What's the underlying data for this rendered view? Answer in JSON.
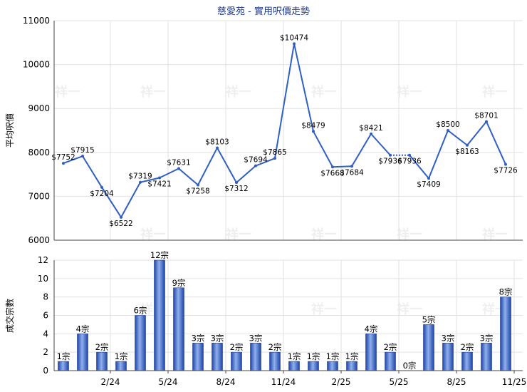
{
  "chart_data": [
    {
      "type": "line",
      "title": "慈愛苑 - 實用呎價走勢",
      "ylabel": "平均呎價",
      "ylim": [
        6000,
        11000
      ],
      "yticks": [
        6000,
        7000,
        8000,
        9000,
        10000,
        11000
      ],
      "grid": true,
      "series": [
        {
          "values": [
            7752,
            7915,
            7204,
            6522,
            7319,
            7421,
            7631,
            7258,
            8103,
            7312,
            7694,
            7865,
            10474,
            8479,
            7668,
            7684,
            8421,
            7936,
            7936,
            7409,
            8500,
            8163,
            8701,
            7726
          ],
          "labels": [
            "$7752",
            "$7915",
            "$7204",
            "$6522",
            "$7319",
            "$7421",
            "$7631",
            "$7258",
            "$8103",
            "$7312",
            "$7694",
            "$7865",
            "$10474",
            "$8479",
            "$7668",
            "$7684",
            "$8421",
            "$7936",
            "$7936",
            "$7409",
            "$8500",
            "$8163",
            "$8701",
            "$7726"
          ],
          "color": "#2f5fc4"
        }
      ]
    },
    {
      "type": "bar",
      "ylabel": "成交宗數",
      "ylim": [
        0,
        12
      ],
      "yticks": [
        0,
        2,
        4,
        6,
        8,
        10,
        12
      ],
      "grid": true,
      "x_tick_labels": [
        "2/24",
        "5/24",
        "8/24",
        "11/24",
        "2/25",
        "5/25",
        "8/25",
        "11/25"
      ],
      "values": [
        1,
        4,
        2,
        1,
        6,
        12,
        9,
        3,
        3,
        2,
        3,
        2,
        1,
        1,
        1,
        1,
        4,
        2,
        0,
        5,
        3,
        2,
        3,
        8
      ],
      "labels": [
        "1宗",
        "4宗",
        "2宗",
        "1宗",
        "6宗",
        "12宗",
        "9宗",
        "3宗",
        "3宗",
        "2宗",
        "3宗",
        "2宗",
        "1宗",
        "1宗",
        "1宗",
        "1宗",
        "4宗",
        "2宗",
        "0宗",
        "5宗",
        "3宗",
        "2宗",
        "3宗",
        "8宗"
      ],
      "color": "#3a66c8"
    }
  ],
  "watermark": "祥一"
}
